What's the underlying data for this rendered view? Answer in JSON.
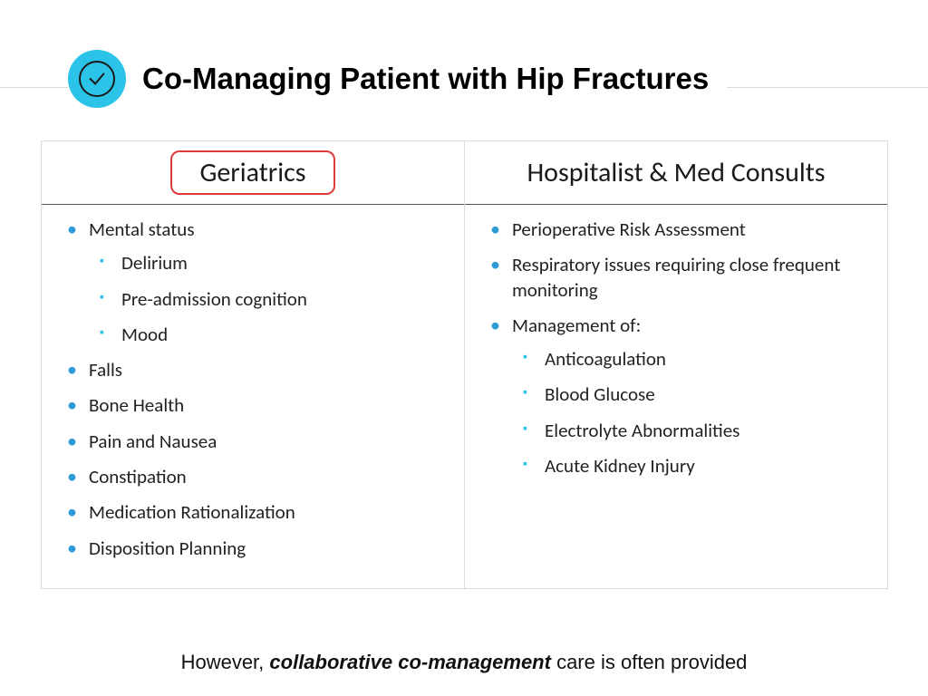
{
  "colors": {
    "icon_bg": "#2cc3e8",
    "icon_stroke": "#1a1a1a",
    "hr": "#d9d9d9",
    "table_border": "#dcdcdc",
    "header_rule": "#555555",
    "red_box_border": "#e03b3b",
    "bullet_l1": "#2f9bd6",
    "bullet_l2": "#2cc3e8",
    "text": "#1a1a1a"
  },
  "header": {
    "icon": "checkmark-circle",
    "title": "Co-Managing Patient with Hip Fractures"
  },
  "columns": {
    "left": {
      "title": "Geriatrics",
      "highlighted": true,
      "items": [
        {
          "text": "Mental status",
          "children": [
            {
              "text": "Delirium"
            },
            {
              "text": "Pre-admission cognition"
            },
            {
              "text": "Mood"
            }
          ]
        },
        {
          "text": "Falls"
        },
        {
          "text": "Bone Health"
        },
        {
          "text": "Pain and Nausea"
        },
        {
          "text": "Constipation"
        },
        {
          "text": "Medication Rationalization"
        },
        {
          "text": "Disposition Planning"
        }
      ]
    },
    "right": {
      "title": "Hospitalist & Med Consults",
      "highlighted": false,
      "items": [
        {
          "text": "Perioperative Risk Assessment"
        },
        {
          "text": "Respiratory issues requiring close frequent monitoring"
        },
        {
          "text": "Management of:",
          "children": [
            {
              "text": "Anticoagulation"
            },
            {
              "text": "Blood Glucose"
            },
            {
              "text": "Electrolyte Abnormalities"
            },
            {
              "text": "Acute Kidney Injury"
            }
          ]
        }
      ]
    }
  },
  "footer": {
    "prefix": "However, ",
    "emph": "collaborative co-management",
    "suffix": " care is often provided"
  }
}
